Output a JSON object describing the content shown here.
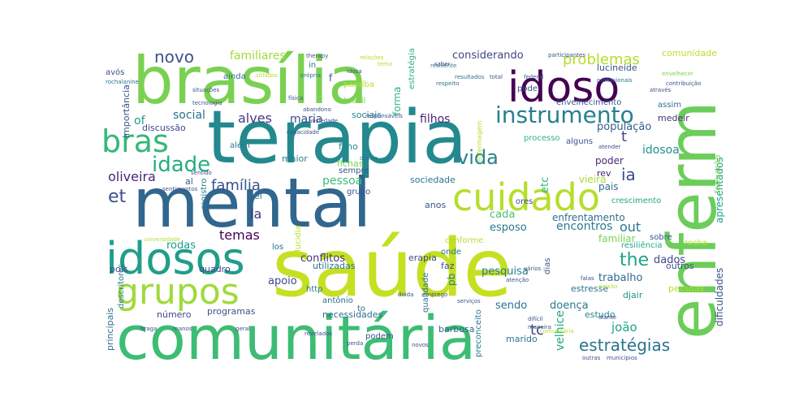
{
  "words": [
    {
      "text": "saúde",
      "color": "#c5e021"
    },
    {
      "text": "terapia",
      "color": "#23898e"
    },
    {
      "text": "comunitária",
      "color": "#3dbc74"
    },
    {
      "text": "brasília",
      "color": "#7ad151"
    },
    {
      "text": "mental",
      "color": "#31668e"
    },
    {
      "text": "enferm",
      "color": "#6ccd5a"
    },
    {
      "text": "idoso",
      "color": "#440154"
    },
    {
      "text": "idosos",
      "color": "#1f9e89"
    },
    {
      "text": "grupos",
      "color": "#9fda3a"
    },
    {
      "text": "cuidado",
      "color": "#b5de2b"
    },
    {
      "text": "bras",
      "color": "#35b779"
    },
    {
      "text": "idade",
      "color": "#27ad81"
    },
    {
      "text": "instrumento",
      "color": "#277f8e"
    },
    {
      "text": "estratégias",
      "color": "#2c728e"
    },
    {
      "text": "vida",
      "color": "#26828e"
    },
    {
      "text": "et",
      "color": "#3b528b"
    },
    {
      "text": "ia",
      "color": "#3e4a89"
    },
    {
      "text": "the",
      "color": "#20a386"
    },
    {
      "text": "novo",
      "color": "#3b528b"
    },
    {
      "text": "problemas",
      "color": "#b5de2b"
    },
    {
      "text": "familiares",
      "color": "#a2da37"
    },
    {
      "text": "considerando",
      "color": "#414487"
    },
    {
      "text": "comunidade",
      "color": "#b8de29"
    },
    {
      "text": "família",
      "color": "#3b528b"
    },
    {
      "text": "alves",
      "color": "#443a83"
    },
    {
      "text": "oliveira",
      "color": "#482677"
    },
    {
      "text": "maria",
      "color": "#3e4989"
    },
    {
      "text": "social",
      "color": "#2d708e"
    },
    {
      "text": "of",
      "color": "#1f9a8a"
    },
    {
      "text": "pessoa",
      "color": "#3dbc74"
    },
    {
      "text": "filhos",
      "color": "#482878"
    },
    {
      "text": "idosoa",
      "color": "#21918c"
    },
    {
      "text": "população",
      "color": "#365c8d"
    },
    {
      "text": "temas",
      "color": "#440154"
    },
    {
      "text": "la",
      "color": "#46337e"
    },
    {
      "text": "out",
      "color": "#2a788e"
    },
    {
      "text": "tc",
      "color": "#414487"
    },
    {
      "text": "joão",
      "color": "#20a386"
    },
    {
      "text": "encontros",
      "color": "#287c8e"
    },
    {
      "text": "esposo",
      "color": "#2a788e"
    },
    {
      "text": "cada",
      "color": "#4ac16d"
    },
    {
      "text": "conflitos",
      "color": "#453781"
    },
    {
      "text": "apoio",
      "color": "#3f4788"
    },
    {
      "text": "rodas",
      "color": "#1e9c89"
    },
    {
      "text": "trabalho",
      "color": "#30698e"
    },
    {
      "text": "pesquisa",
      "color": "#287c8e"
    },
    {
      "text": "sendo",
      "color": "#2c738e"
    },
    {
      "text": "doença",
      "color": "#2a788e"
    },
    {
      "text": "velhice",
      "color": "#22a785"
    },
    {
      "text": "dados",
      "color": "#3f4788"
    },
    {
      "text": "familiar",
      "color": "#7ad151"
    },
    {
      "text": "enfrentamento",
      "color": "#2e6f8e"
    },
    {
      "text": "vieira",
      "color": "#a8db34"
    },
    {
      "text": "sociedade",
      "color": "#2a778e"
    },
    {
      "text": "anos",
      "color": "#3b528b"
    },
    {
      "text": "etc",
      "color": "#2fb47c"
    },
    {
      "text": "forma",
      "color": "#2fb47c"
    },
    {
      "text": "sociais",
      "color": "#26828e"
    },
    {
      "text": "poder",
      "color": "#482878"
    },
    {
      "text": "rev",
      "color": "#481f70"
    },
    {
      "text": "pais",
      "color": "#2d718e"
    },
    {
      "text": "maior",
      "color": "#27808e"
    },
    {
      "text": "filho",
      "color": "#25858e"
    },
    {
      "text": "fichas",
      "color": "#7ad151"
    },
    {
      "text": "apresentados",
      "color": "#1fa088"
    },
    {
      "text": "importância",
      "color": "#3b528b"
    },
    {
      "text": "discussão",
      "color": "#3e4989"
    },
    {
      "text": "dificuldades",
      "color": "#3b528b"
    },
    {
      "text": "lucineide",
      "color": "#3b528b"
    },
    {
      "text": "envelhecimento",
      "color": "#3b528b"
    },
    {
      "text": "assim",
      "color": "#2c738e"
    },
    {
      "text": "medeir",
      "color": "#46307e"
    },
    {
      "text": "t",
      "color": "#3e4989"
    },
    {
      "text": "crescimento",
      "color": "#22a884"
    },
    {
      "text": "resiliência",
      "color": "#22a785"
    },
    {
      "text": "formação",
      "color": "#7ad151"
    },
    {
      "text": "outros",
      "color": "#3b528b"
    },
    {
      "text": "djair",
      "color": "#1f948c"
    },
    {
      "text": "estresse",
      "color": "#2d708e"
    },
    {
      "text": "pessoas",
      "color": "#b5de2b"
    },
    {
      "text": "estudo",
      "color": "#25858e"
    },
    {
      "text": "marido",
      "color": "#2a788e"
    },
    {
      "text": "barbosa",
      "color": "#31688e"
    },
    {
      "text": "qualidade",
      "color": "#2e6e8e"
    },
    {
      "text": "necessidades",
      "color": "#2c728e"
    },
    {
      "text": "programas",
      "color": "#3b528b"
    },
    {
      "text": "número",
      "color": "#3f4788"
    },
    {
      "text": "principais",
      "color": "#2c728e"
    },
    {
      "text": "descritores",
      "color": "#287c8e"
    },
    {
      "text": "utilizadas",
      "color": "#2c728e"
    },
    {
      "text": "quadro",
      "color": "#3e4989"
    },
    {
      "text": "erapia",
      "color": "#3e4989"
    },
    {
      "text": "conforme",
      "color": "#b5de2b"
    },
    {
      "text": "sobre",
      "color": "#3b528b"
    },
    {
      "text": "rocha",
      "color": "#b5de2b"
    },
    {
      "text": "registro",
      "color": "#2a788e"
    },
    {
      "text": "lucidia",
      "color": "#b5de2b"
    },
    {
      "text": "ainda",
      "color": "#2d708e"
    },
    {
      "text": "brasil",
      "color": "#7ad151"
    },
    {
      "text": "paraíba",
      "color": "#b5de2b"
    },
    {
      "text": "estratégia",
      "color": "#2fb47c"
    },
    {
      "text": "in",
      "color": "#2c728e"
    },
    {
      "text": "f",
      "color": "#3b528b"
    },
    {
      "text": "avós",
      "color": "#3b528b"
    },
    {
      "text": "pode",
      "color": "#3b528b"
    },
    {
      "text": "além",
      "color": "#2a788e"
    },
    {
      "text": "al",
      "color": "#3b528b"
    },
    {
      "text": "ei",
      "color": "#2a788e"
    },
    {
      "text": "grupo",
      "color": "#3b528b"
    },
    {
      "text": "sempre",
      "color": "#3b528b"
    },
    {
      "text": "ores",
      "color": "#3b528b"
    },
    {
      "text": "pb",
      "color": "#2a788e"
    },
    {
      "text": "faz",
      "color": "#3b528b"
    },
    {
      "text": "onde",
      "color": "#2c728e"
    },
    {
      "text": "los",
      "color": "#2c728e"
    },
    {
      "text": "to",
      "color": "#2c728e"
    },
    {
      "text": "antônio",
      "color": "#2c728e"
    },
    {
      "text": "http",
      "color": "#2c728e"
    },
    {
      "text": "podem",
      "color": "#3b528b"
    },
    {
      "text": "preconceito",
      "color": "#2a788e"
    },
    {
      "text": "alguns",
      "color": "#3b528b"
    },
    {
      "text": "processo",
      "color": "#2fb47c"
    },
    {
      "text": "pois",
      "color": "#3b528b"
    },
    {
      "text": "dias",
      "color": "#3b528b"
    },
    {
      "text": "therapy",
      "color": "#3b528b"
    },
    {
      "text": "resiliente",
      "color": "#2a788e"
    },
    {
      "text": "capacidade",
      "color": "#3b528b"
    },
    {
      "text": "situações",
      "color": "#3b528b"
    },
    {
      "text": "tecnologia",
      "color": "#3b528b"
    },
    {
      "text": "rochalanine",
      "color": "#2c728e"
    },
    {
      "text": "própria",
      "color": "#2c728e"
    },
    {
      "text": "respeito",
      "color": "#2c728e"
    },
    {
      "text": "resultados",
      "color": "#2c728e"
    },
    {
      "text": "participantes",
      "color": "#3b528b"
    },
    {
      "text": "federal",
      "color": "#3b528b"
    },
    {
      "text": "saber",
      "color": "#3b528b"
    },
    {
      "text": "total",
      "color": "#3b528b"
    },
    {
      "text": "profissionais",
      "color": "#2c728e"
    },
    {
      "text": "através",
      "color": "#3b528b"
    },
    {
      "text": "contribuição",
      "color": "#3b528b"
    },
    {
      "text": "envelhecer",
      "color": "#7ad151"
    },
    {
      "text": "enfermagem",
      "color": "#b5de2b"
    },
    {
      "text": "atender",
      "color": "#3b528b"
    },
    {
      "text": "sentido",
      "color": "#3b528b"
    },
    {
      "text": "sentimentos",
      "color": "#3b528b"
    },
    {
      "text": "responsáveis",
      "color": "#3b528b"
    },
    {
      "text": "universidade",
      "color": "#b5de2b"
    },
    {
      "text": "braga",
      "color": "#3b528b"
    },
    {
      "text": "manos",
      "color": "#3b528b"
    },
    {
      "text": "geral",
      "color": "#3b528b"
    },
    {
      "text": "perda",
      "color": "#3b528b"
    },
    {
      "text": "revelados",
      "color": "#3b528b"
    },
    {
      "text": "novos",
      "color": "#3b528b"
    },
    {
      "text": "difícil",
      "color": "#3b528b"
    },
    {
      "text": "maneira",
      "color": "#3b528b"
    },
    {
      "text": "falas",
      "color": "#3b528b"
    },
    {
      "text": "paixão",
      "color": "#b5de2b"
    },
    {
      "text": "diante",
      "color": "#3b528b"
    },
    {
      "text": "outras",
      "color": "#3b528b"
    },
    {
      "text": "municípios",
      "color": "#3b528b"
    },
    {
      "text": "serviços",
      "color": "#3b528b"
    },
    {
      "text": "atenção",
      "color": "#3b528b"
    },
    {
      "text": "vários",
      "color": "#3b528b"
    },
    {
      "text": "comunitária",
      "color": "#b5de2b"
    },
    {
      "text": "tema",
      "color": "#b5de2b"
    },
    {
      "text": "idosa",
      "color": "#3b528b"
    },
    {
      "text": "sitiados",
      "color": "#b5de2b"
    },
    {
      "text": "relações",
      "color": "#b5de2b"
    },
    {
      "text": "física",
      "color": "#3b528b"
    },
    {
      "text": "abandono",
      "color": "#3b528b"
    },
    {
      "text": "ansiedade",
      "color": "#3b528b"
    },
    {
      "text": "ocorra",
      "color": "#2c728e"
    },
    {
      "text": "doida",
      "color": "#3b528b"
    },
    {
      "text": "emprego",
      "color": "#3b528b"
    }
  ]
}
